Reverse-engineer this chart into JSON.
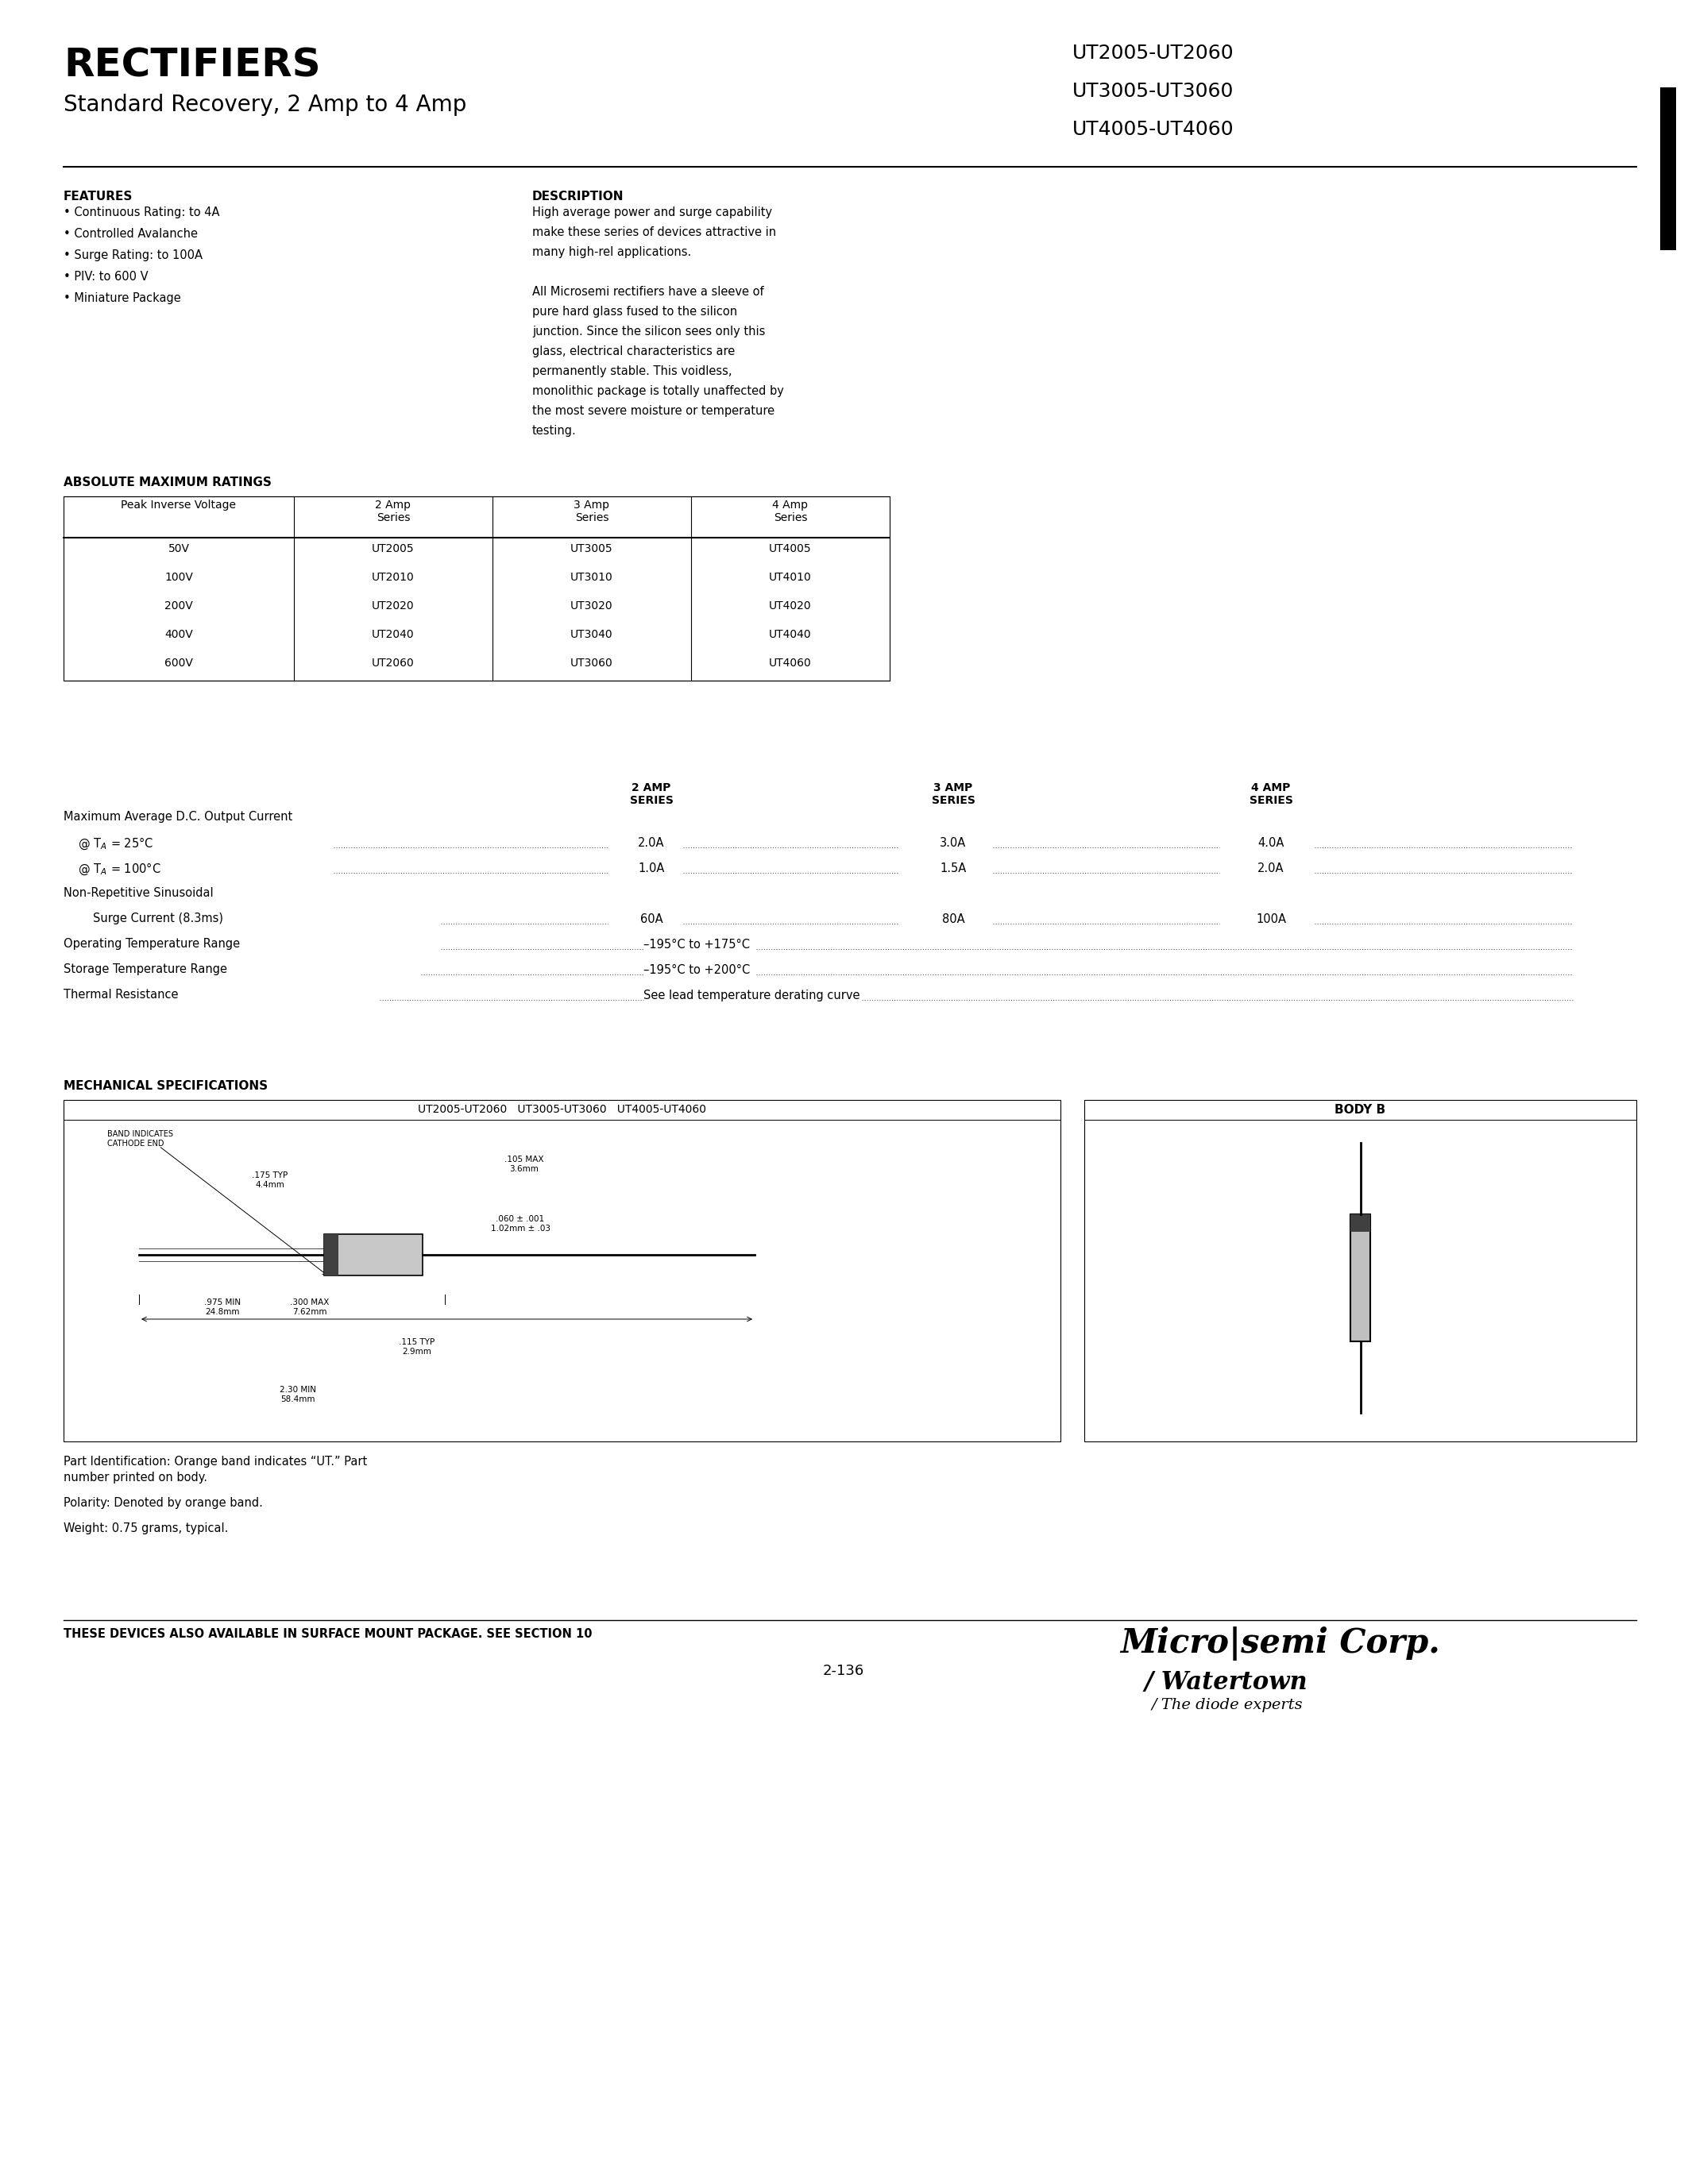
{
  "page_title": "RECTIFIERS",
  "page_subtitle": "Standard Recovery, 2 Amp to 4 Amp",
  "part_numbers": [
    "UT2005-UT2060",
    "UT3005-UT3060",
    "UT4005-UT4060"
  ],
  "features_title": "FEATURES",
  "features": [
    "Continuous Rating: to 4A",
    "Controlled Avalanche",
    "Surge Rating: to 100A",
    "PIV: to 600 V",
    "Miniature Package"
  ],
  "description_title": "DESCRIPTION",
  "description_text": [
    "High average power and surge capability",
    "make these series of devices attractive in",
    "many high-rel applications.",
    "",
    "All Microsemi rectifiers have a sleeve of",
    "pure hard glass fused to the silicon",
    "junction. Since the silicon sees only this",
    "glass, electrical characteristics are",
    "permanently stable. This voidless,",
    "monolithic package is totally unaffected by",
    "the most severe moisture or temperature",
    "testing."
  ],
  "abs_max_title": "ABSOLUTE MAXIMUM RATINGS",
  "table_headers": [
    "Peak Inverse Voltage",
    "2 Amp\nSeries",
    "3 Amp\nSeries",
    "4 Amp\nSeries"
  ],
  "table_rows": [
    [
      "50V",
      "UT2005",
      "UT3005",
      "UT4005"
    ],
    [
      "100V",
      "UT2010",
      "UT3010",
      "UT4010"
    ],
    [
      "200V",
      "UT2020",
      "UT3020",
      "UT4020"
    ],
    [
      "400V",
      "UT2040",
      "UT3040",
      "UT4040"
    ],
    [
      "600V",
      "UT2060",
      "UT3060",
      "UT4060"
    ]
  ],
  "mech_title": "MECHANICAL SPECIFICATIONS",
  "body_b_label": "BODY B",
  "footer_text": "THESE DEVICES ALSO AVAILABLE IN SURFACE MOUNT PACKAGE. SEE SECTION 10",
  "page_number": "2-136",
  "microsemi_text": "Micro|semi Corp.",
  "watertown_text": "Watertown",
  "diode_experts": "The diode experts",
  "bg": "#ffffff"
}
